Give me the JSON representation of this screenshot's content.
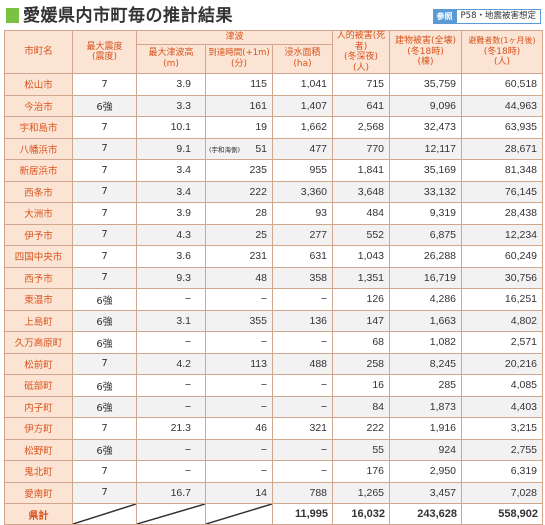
{
  "header": {
    "title": "愛媛県内市町毎の推計結果",
    "ref_tag": "参照",
    "ref_text": "P58・地震被害想定"
  },
  "columns": {
    "city": "市町名",
    "intensity": [
      "最大震度",
      "(震度)"
    ],
    "tsunami_group": "津波",
    "tsunami_height": [
      "最大津波高",
      "(m)"
    ],
    "arrival_time": [
      "到達時間(+1m)",
      "(分)"
    ],
    "flood_area": [
      "浸水面積",
      "(ha)"
    ],
    "casualties": [
      "人的被害(死者)",
      "(冬深夜)",
      "(人)"
    ],
    "buildings": [
      "建物被害(全壊)",
      "(冬18時)",
      "(棟)"
    ],
    "evacuees": [
      "避難者数(1ヶ月後)",
      "(冬18時)",
      "(人)"
    ]
  },
  "rows": [
    {
      "city": "松山市",
      "intensity": "7",
      "tsunami_height": "3.9",
      "arrival_time": "115",
      "flood_area": "1,041",
      "casualties": "715",
      "buildings": "35,759",
      "evacuees": "60,518"
    },
    {
      "city": "今治市",
      "intensity": "6強",
      "tsunami_height": "3.3",
      "arrival_time": "161",
      "flood_area": "1,407",
      "casualties": "641",
      "buildings": "9,096",
      "evacuees": "44,963"
    },
    {
      "city": "宇和島市",
      "intensity": "7",
      "tsunami_height": "10.1",
      "arrival_time": "19",
      "flood_area": "1,662",
      "casualties": "2,568",
      "buildings": "32,473",
      "evacuees": "63,935"
    },
    {
      "city": "八幡浜市",
      "intensity": "7",
      "tsunami_height": "9.1",
      "arrival_time": "51",
      "arrival_note": "(宇和海側)",
      "flood_area": "477",
      "casualties": "770",
      "buildings": "12,117",
      "evacuees": "28,671"
    },
    {
      "city": "新居浜市",
      "intensity": "7",
      "tsunami_height": "3.4",
      "arrival_time": "235",
      "flood_area": "955",
      "casualties": "1,841",
      "buildings": "35,169",
      "evacuees": "81,348"
    },
    {
      "city": "西条市",
      "intensity": "7",
      "tsunami_height": "3.4",
      "arrival_time": "222",
      "flood_area": "3,360",
      "casualties": "3,648",
      "buildings": "33,132",
      "evacuees": "76,145"
    },
    {
      "city": "大洲市",
      "intensity": "7",
      "tsunami_height": "3.9",
      "arrival_time": "28",
      "flood_area": "93",
      "casualties": "484",
      "buildings": "9,319",
      "evacuees": "28,438"
    },
    {
      "city": "伊予市",
      "intensity": "7",
      "tsunami_height": "4.3",
      "arrival_time": "25",
      "flood_area": "277",
      "casualties": "552",
      "buildings": "6,875",
      "evacuees": "12,234"
    },
    {
      "city": "四国中央市",
      "intensity": "7",
      "tsunami_height": "3.6",
      "arrival_time": "231",
      "flood_area": "631",
      "casualties": "1,043",
      "buildings": "26,288",
      "evacuees": "60,249"
    },
    {
      "city": "西予市",
      "intensity": "7",
      "tsunami_height": "9.3",
      "arrival_time": "48",
      "flood_area": "358",
      "casualties": "1,351",
      "buildings": "16,719",
      "evacuees": "30,756"
    },
    {
      "city": "東温市",
      "intensity": "6強",
      "tsunami_height": "−",
      "arrival_time": "−",
      "flood_area": "−",
      "casualties": "126",
      "buildings": "4,286",
      "evacuees": "16,251"
    },
    {
      "city": "上島町",
      "intensity": "6強",
      "tsunami_height": "3.1",
      "arrival_time": "355",
      "flood_area": "136",
      "casualties": "147",
      "buildings": "1,663",
      "evacuees": "4,802"
    },
    {
      "city": "久万高原町",
      "intensity": "6強",
      "tsunami_height": "−",
      "arrival_time": "−",
      "flood_area": "−",
      "casualties": "68",
      "buildings": "1,082",
      "evacuees": "2,571"
    },
    {
      "city": "松前町",
      "intensity": "7",
      "tsunami_height": "4.2",
      "arrival_time": "113",
      "flood_area": "488",
      "casualties": "258",
      "buildings": "8,245",
      "evacuees": "20,216"
    },
    {
      "city": "砥部町",
      "intensity": "6強",
      "tsunami_height": "−",
      "arrival_time": "−",
      "flood_area": "−",
      "casualties": "16",
      "buildings": "285",
      "evacuees": "4,085"
    },
    {
      "city": "内子町",
      "intensity": "6強",
      "tsunami_height": "−",
      "arrival_time": "−",
      "flood_area": "−",
      "casualties": "84",
      "buildings": "1,873",
      "evacuees": "4,403"
    },
    {
      "city": "伊方町",
      "intensity": "7",
      "tsunami_height": "21.3",
      "arrival_time": "46",
      "flood_area": "321",
      "casualties": "222",
      "buildings": "1,916",
      "evacuees": "3,215"
    },
    {
      "city": "松野町",
      "intensity": "6強",
      "tsunami_height": "−",
      "arrival_time": "−",
      "flood_area": "−",
      "casualties": "55",
      "buildings": "924",
      "evacuees": "2,755"
    },
    {
      "city": "鬼北町",
      "intensity": "7",
      "tsunami_height": "−",
      "arrival_time": "−",
      "flood_area": "−",
      "casualties": "176",
      "buildings": "2,950",
      "evacuees": "6,319"
    },
    {
      "city": "愛南町",
      "intensity": "7",
      "tsunami_height": "16.7",
      "arrival_time": "14",
      "flood_area": "788",
      "casualties": "1,265",
      "buildings": "3,457",
      "evacuees": "7,028"
    }
  ],
  "total": {
    "label": "県計",
    "flood_area": "11,995",
    "casualties": "16,032",
    "buildings": "243,628",
    "evacuees": "558,902"
  },
  "colors": {
    "header_bg": "#fbe4d3",
    "header_text": "#d9531e",
    "border": "#d2a68e",
    "accent_green": "#7cc242",
    "ref_blue": "#5b9bd5"
  }
}
